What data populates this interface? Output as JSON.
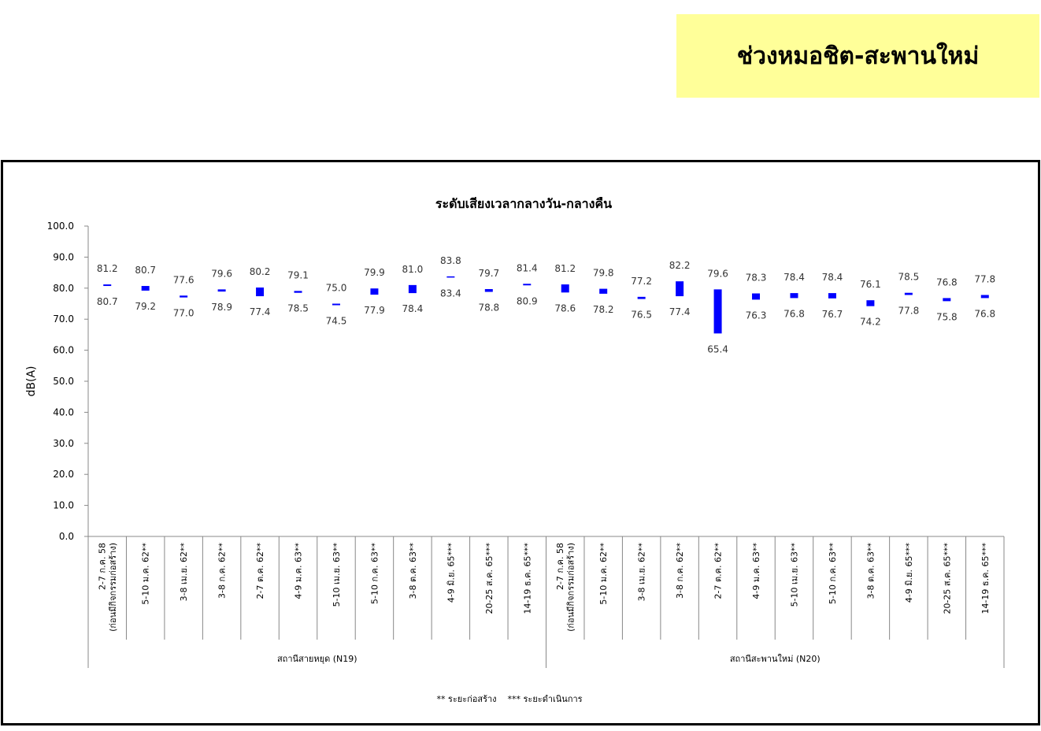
{
  "header": {
    "title": "ช่วงหมอชิต-สะพานใหม่"
  },
  "chart_data": {
    "type": "floating_bar",
    "title": "ระดับเสียงเวลากลางวัน-กลางคืน",
    "y_label": "dB(A)",
    "color": "#0000ff",
    "ylim": [
      0,
      100
    ],
    "yticks": [
      {
        "value": 0,
        "label": "0.0"
      },
      {
        "value": 10,
        "label": "10.0"
      },
      {
        "value": 20,
        "label": "20.0"
      },
      {
        "value": 30,
        "label": "30.0"
      },
      {
        "value": 40,
        "label": "40.0"
      },
      {
        "value": 50,
        "label": "50.0"
      },
      {
        "value": 60,
        "label": "60.0"
      },
      {
        "value": 70,
        "label": "70.0"
      },
      {
        "value": 80,
        "label": "80.0"
      },
      {
        "value": 90,
        "label": "90.0"
      },
      {
        "value": 100,
        "label": "100.0"
      }
    ],
    "groups": [
      {
        "name": "สถานีสายหยุด (N19)",
        "categories": [
          "2-7 ก.ค. 58\n(ก่อนมีกิจกรรมก่อสร้าง)",
          "5-10 ม.ค. 62**",
          "3-8 เม.ย. 62**",
          "3-8 ก.ค. 62**",
          "2-7 ต.ค. 62**",
          "4-9 ม.ค. 63**",
          "5-10 เม.ย. 63**",
          "5-10 ก.ค. 63**",
          "3-8 ต.ค. 63**",
          "4-9 มิ.ย. 65***",
          "20-25 ส.ค. 65***",
          "14-19 ธ.ค. 65***"
        ],
        "high": [
          81.2,
          80.7,
          77.6,
          79.6,
          80.2,
          79.1,
          75.0,
          79.9,
          81.0,
          83.8,
          79.7,
          81.4
        ],
        "high_labels": [
          "81.2",
          "80.7",
          "77.6",
          "79.6",
          "80.2",
          "79.1",
          "75.0",
          "79.9",
          "81.0",
          "83.8",
          "79.7",
          "81.4"
        ],
        "low": [
          80.7,
          79.2,
          77.0,
          78.9,
          77.4,
          78.5,
          74.5,
          77.9,
          78.4,
          83.4,
          78.8,
          80.9
        ],
        "low_labels": [
          "80.7",
          "79.2",
          "77.0",
          "78.9",
          "77.4",
          "78.5",
          "74.5",
          "77.9",
          "78.4",
          "83.4",
          "78.8",
          "80.9"
        ]
      },
      {
        "name": "สถานีสะพานใหม่ (N20)",
        "categories": [
          "2-7 ก.ค. 58\n(ก่อนมีกิจกรรมก่อสร้าง)",
          "5-10 ม.ค. 62**",
          "3-8 เม.ย. 62**",
          "3-8 ก.ค. 62**",
          "2-7 ต.ค. 62**",
          "4-9 ม.ค. 63**",
          "5-10 เม.ย. 63**",
          "5-10 ก.ค. 63**",
          "3-8 ต.ค. 63**",
          "4-9 มิ.ย. 65***",
          "20-25 ส.ค. 65***",
          "14-19 ธ.ค. 65***"
        ],
        "high": [
          81.2,
          79.8,
          77.2,
          82.2,
          79.6,
          78.3,
          78.4,
          78.4,
          76.1,
          78.5,
          76.8,
          77.8
        ],
        "high_labels": [
          "81.2",
          "79.8",
          "77.2",
          "82.2",
          "79.6",
          "78.3",
          "78.4",
          "78.4",
          "76.1",
          "78.5",
          "76.8",
          "77.8"
        ],
        "low": [
          78.6,
          78.2,
          76.5,
          77.4,
          65.4,
          76.3,
          76.8,
          76.7,
          74.2,
          77.8,
          75.8,
          76.8
        ],
        "low_labels": [
          "78.6",
          "78.2",
          "76.5",
          "77.4",
          "65.4",
          "76.3",
          "76.8",
          "76.7",
          "74.2",
          "77.8",
          "75.8",
          "76.8"
        ]
      }
    ],
    "footnote": "** ระยะก่อสร้าง    *** ระยะดำเนินการ"
  }
}
